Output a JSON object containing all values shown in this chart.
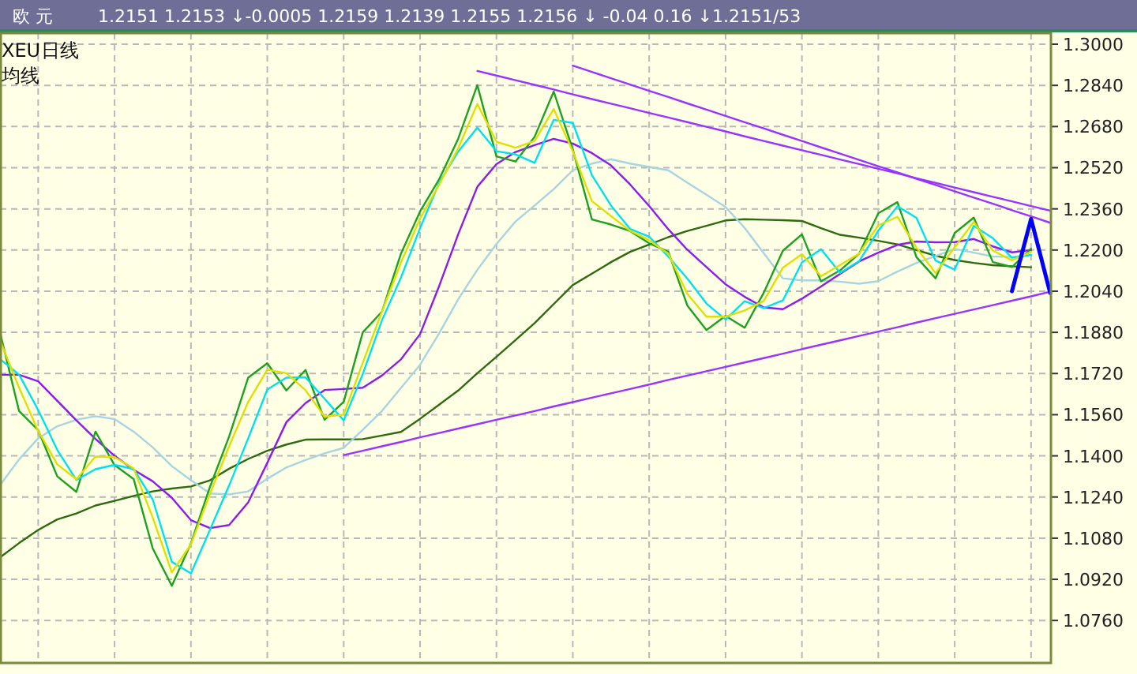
{
  "chart_data": {
    "type": "line",
    "title": "欧  元",
    "subtitle": "1.2151  1.2153  ↓-0.0005  1.2159  1.2139  1.2155  1.2156  ↓  -0.04  0.16  ↓1.2151/53",
    "annotations": [
      "XEU",
      "日线",
      "均线"
    ],
    "categories": [
      null,
      null,
      null,
      null,
      null,
      null,
      null,
      null,
      null,
      null,
      null,
      null,
      null,
      null,
      null,
      null,
      null,
      null,
      null,
      null,
      null,
      null,
      null,
      null,
      null,
      null,
      null,
      null,
      null,
      null,
      null,
      null,
      null,
      null,
      null,
      null,
      null,
      null,
      null,
      null,
      null,
      null,
      null,
      null,
      null,
      null,
      null,
      null,
      null,
      null,
      null,
      null,
      null,
      null,
      null,
      null
    ],
    "ylim": [
      1.0595,
      1.3043
    ],
    "yticks": [
      {
        "value": 1.3,
        "label": "1.3000"
      },
      {
        "value": 1.284,
        "label": "1.2840"
      },
      {
        "value": 1.268,
        "label": "1.2680"
      },
      {
        "value": 1.252,
        "label": "1.2520"
      },
      {
        "value": 1.236,
        "label": "1.2360"
      },
      {
        "value": 1.22,
        "label": "1.2200"
      },
      {
        "value": 1.204,
        "label": "1.2040"
      },
      {
        "value": 1.188,
        "label": "1.1880"
      },
      {
        "value": 1.172,
        "label": "1.1720"
      },
      {
        "value": 1.156,
        "label": "1.1560"
      },
      {
        "value": 1.14,
        "label": "1.1400"
      },
      {
        "value": 1.124,
        "label": "1.1240"
      },
      {
        "value": 1.108,
        "label": "1.1080"
      },
      {
        "value": 1.092,
        "label": "1.0920"
      },
      {
        "value": 1.076,
        "label": "1.0760"
      }
    ],
    "grid": true,
    "tick_labels": "y",
    "series": [
      {
        "color": "#2e6b10",
        "values": [
          1.1005,
          1.1061,
          1.1112,
          1.1153,
          1.1176,
          1.1207,
          1.1225,
          1.1244,
          1.1262,
          1.1273,
          1.1281,
          1.1305,
          1.135,
          1.1388,
          1.142,
          1.1444,
          1.1463,
          1.1464,
          1.1464,
          1.1465,
          1.1479,
          1.1493,
          1.1544,
          1.1599,
          1.1654,
          1.1721,
          1.1785,
          1.185,
          1.1916,
          1.199,
          1.2064,
          1.2108,
          1.2153,
          1.2193,
          1.2221,
          1.225,
          1.2274,
          1.2294,
          1.2315,
          1.232,
          1.2318,
          1.2316,
          1.2313,
          1.2285,
          1.2259,
          1.2248,
          1.2236,
          1.2222,
          1.22,
          1.2178,
          1.2161,
          1.215,
          1.2141,
          1.2137,
          1.2133,
          null
        ]
      },
      {
        "color": "#a8d4e0",
        "values": [
          1.1286,
          1.1386,
          1.1468,
          1.1515,
          1.154,
          1.1554,
          1.1543,
          1.1494,
          1.1433,
          1.136,
          1.1305,
          1.1254,
          1.125,
          1.1262,
          1.1311,
          1.1355,
          1.1384,
          1.141,
          1.1431,
          1.1501,
          1.1574,
          1.1664,
          1.1754,
          1.1876,
          1.2009,
          1.2123,
          1.2223,
          1.2311,
          1.2373,
          1.2437,
          1.251,
          1.2536,
          1.2553,
          1.2536,
          1.2523,
          1.251,
          1.2462,
          1.2415,
          1.2367,
          1.2286,
          1.2188,
          1.209,
          1.2082,
          1.2082,
          1.2077,
          1.2069,
          1.2079,
          1.2116,
          1.215,
          1.2177,
          1.2204,
          1.219,
          1.2175,
          1.2173,
          1.2182,
          null
        ]
      },
      {
        "color": "#8a1cf0",
        "values": [
          1.1715,
          1.1715,
          1.169,
          1.1614,
          1.1538,
          1.1466,
          1.14,
          1.1346,
          1.1301,
          1.1237,
          1.115,
          1.1119,
          1.1131,
          1.1219,
          1.1373,
          1.1531,
          1.1605,
          1.1656,
          1.166,
          1.1665,
          1.1712,
          1.1775,
          1.1873,
          1.206,
          1.2262,
          1.2446,
          1.2534,
          1.2581,
          1.2608,
          1.2632,
          1.2614,
          1.2577,
          1.2529,
          1.2455,
          1.2371,
          1.2281,
          1.2201,
          1.2134,
          1.2067,
          1.2018,
          1.1977,
          1.197,
          1.2011,
          1.2058,
          1.2107,
          1.2156,
          1.219,
          1.222,
          1.2233,
          1.223,
          1.2231,
          1.2243,
          1.2214,
          1.2191,
          1.22,
          null
        ]
      },
      {
        "color": "#20a020",
        "values": [
          1.188,
          1.1574,
          1.15,
          1.132,
          1.126,
          1.1494,
          1.1364,
          1.131,
          1.104,
          1.0895,
          1.106,
          1.128,
          1.1475,
          1.1704,
          1.176,
          1.1654,
          1.1734,
          1.154,
          1.161,
          1.188,
          1.196,
          1.2186,
          1.235,
          1.2475,
          1.2633,
          1.2841,
          1.2564,
          1.2544,
          1.264,
          1.2816,
          1.259,
          1.2319,
          1.2299,
          1.2274,
          1.2226,
          1.2194,
          1.1984,
          1.1889,
          1.1944,
          1.1898,
          1.2034,
          1.2197,
          1.2261,
          1.2078,
          1.2121,
          1.2186,
          1.2343,
          1.2386,
          1.2172,
          1.209,
          1.2266,
          1.2326,
          1.2153,
          1.2134,
          1.2205,
          null
        ]
      },
      {
        "color": "#00e0f0",
        "values": [
          1.1776,
          1.1716,
          1.1578,
          1.1423,
          1.1306,
          1.1348,
          1.1365,
          1.1349,
          1.123,
          1.0988,
          1.0943,
          1.1113,
          1.1285,
          1.1468,
          1.1658,
          1.1704,
          1.1705,
          1.1622,
          1.1538,
          1.1718,
          1.1926,
          1.2093,
          1.2285,
          1.2461,
          1.2583,
          1.2676,
          1.2584,
          1.2572,
          1.2539,
          1.2706,
          1.2694,
          1.2491,
          1.2373,
          1.2282,
          1.2252,
          1.2175,
          1.2089,
          1.1992,
          1.193,
          1.2001,
          1.1974,
          1.2004,
          1.2152,
          1.2203,
          1.2111,
          1.2157,
          1.2275,
          1.237,
          1.2325,
          1.2159,
          1.2124,
          1.2294,
          1.2246,
          1.217,
          1.2181,
          null
        ]
      },
      {
        "color": "#e0e000",
        "values": [
          1.1849,
          1.1665,
          1.1497,
          1.1367,
          1.1309,
          1.1397,
          1.1395,
          1.1351,
          1.116,
          1.0947,
          1.1056,
          1.1253,
          1.1437,
          1.161,
          1.1735,
          1.1721,
          1.1655,
          1.1552,
          1.156,
          1.1762,
          1.196,
          1.2151,
          1.2322,
          1.2454,
          1.2596,
          1.2768,
          1.2621,
          1.2598,
          1.2624,
          1.2748,
          1.2584,
          1.239,
          1.2332,
          1.2275,
          1.2238,
          1.2186,
          1.2029,
          1.1941,
          1.1941,
          1.1965,
          1.2002,
          1.2131,
          1.2184,
          1.2098,
          1.2142,
          1.2186,
          1.2296,
          1.2329,
          1.2209,
          1.211,
          1.2211,
          1.2309,
          1.2198,
          1.216,
          1.2193,
          null
        ]
      },
      {
        "color": "#9933ff",
        "values": [
          null,
          null,
          null,
          null,
          null,
          null,
          null,
          null,
          null,
          null,
          null,
          null,
          null,
          null,
          null,
          null,
          null,
          null,
          null,
          null,
          null,
          null,
          null,
          null,
          null,
          1.2896,
          1.2878,
          1.286,
          1.2842,
          1.2824,
          1.2805,
          1.2787,
          1.2769,
          1.2751,
          1.2733,
          1.2715,
          1.2697,
          1.2679,
          1.2661,
          1.2642,
          1.2624,
          1.2606,
          1.2588,
          1.257,
          1.2552,
          1.2534,
          1.2516,
          1.2498,
          1.2479,
          1.2461,
          1.2443,
          1.2425,
          1.2407,
          1.2389,
          1.2371,
          1.2353
        ]
      },
      {
        "color": "#9933ff",
        "values": [
          null,
          null,
          null,
          null,
          null,
          null,
          null,
          null,
          null,
          null,
          null,
          null,
          null,
          null,
          null,
          null,
          null,
          null,
          null,
          null,
          null,
          null,
          null,
          null,
          null,
          null,
          null,
          null,
          null,
          null,
          1.2917,
          1.2892,
          1.2868,
          1.2843,
          1.2819,
          1.2795,
          1.277,
          1.2746,
          1.2721,
          1.2697,
          1.2673,
          1.2648,
          1.2624,
          1.2599,
          1.2575,
          1.255,
          1.2526,
          1.2502,
          1.2477,
          1.2453,
          1.2428,
          1.2404,
          1.238,
          1.2355,
          1.2331,
          1.2306
        ]
      },
      {
        "color": "#9933ff",
        "values": [
          null,
          null,
          null,
          null,
          null,
          null,
          null,
          null,
          null,
          null,
          null,
          null,
          null,
          null,
          null,
          null,
          null,
          null,
          1.1403,
          1.142,
          1.1437,
          1.1454,
          1.1472,
          1.1489,
          1.1506,
          1.1523,
          1.154,
          1.1557,
          1.1574,
          1.1592,
          1.1609,
          1.1626,
          1.1643,
          1.166,
          1.1677,
          1.1695,
          1.1712,
          1.1729,
          1.1746,
          1.1763,
          1.178,
          1.1797,
          1.1815,
          1.1832,
          1.1849,
          1.1866,
          1.1883,
          1.19,
          1.1918,
          1.1935,
          1.1952,
          1.1969,
          1.1986,
          1.2003,
          1.202,
          1.2038
        ]
      },
      {
        "color": "#0000ff",
        "values": [
          null,
          null,
          null,
          null,
          null,
          null,
          null,
          null,
          null,
          null,
          null,
          null,
          null,
          null,
          null,
          null,
          null,
          null,
          null,
          null,
          null,
          null,
          null,
          null,
          null,
          null,
          null,
          null,
          null,
          null,
          null,
          null,
          null,
          null,
          null,
          null,
          null,
          null,
          null,
          null,
          null,
          null,
          null,
          null,
          null,
          null,
          null,
          null,
          null,
          null,
          null,
          null,
          null,
          1.204,
          1.2321,
          1.2033
        ]
      }
    ]
  }
}
